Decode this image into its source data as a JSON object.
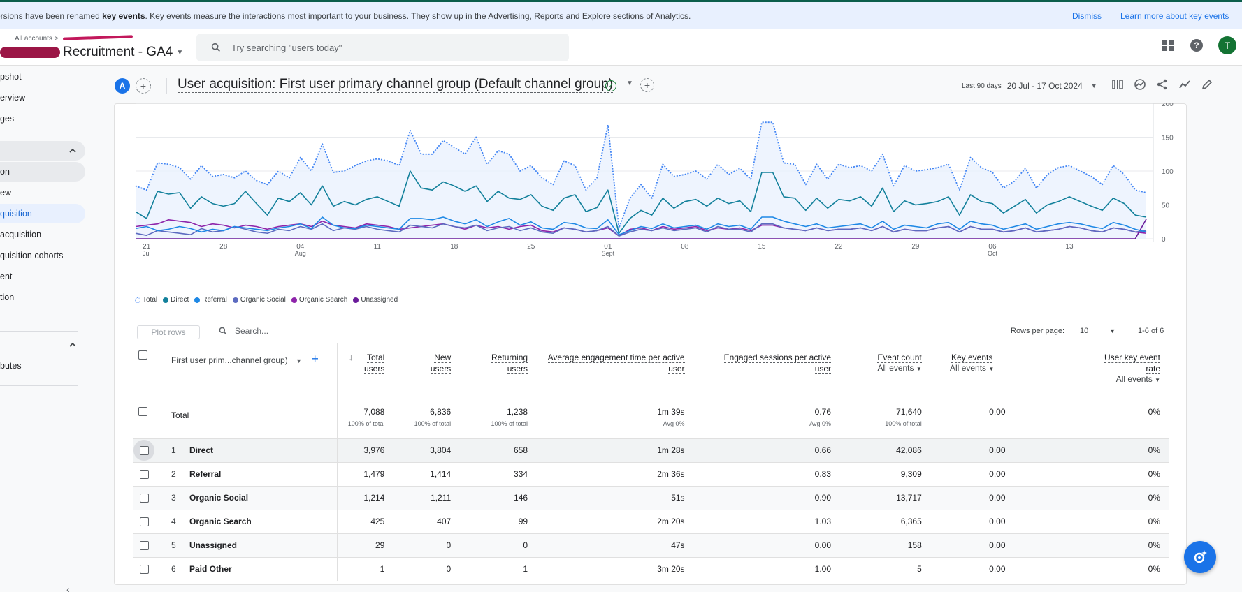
{
  "banner": {
    "message_prefix": "ersions have been renamed ",
    "message_bold": "key events",
    "message_suffix": ". Key events measure the interactions most important to your business. They show up in the Advertising, Reports and Explore sections of Analytics.",
    "dismiss": "Dismiss",
    "learn_more": "Learn more about key events"
  },
  "header": {
    "breadcrumb": "All accounts",
    "property_name": "Recruitment - GA4",
    "search_placeholder": "Try searching \"users today\"",
    "avatar_letter": "T",
    "help_glyph": "?"
  },
  "sidebar": {
    "items": [
      {
        "label": "pshot"
      },
      {
        "label": "erview"
      },
      {
        "label": "ges"
      },
      {
        "label": "on"
      },
      {
        "label": "ew"
      },
      {
        "label": "quisition"
      },
      {
        "label": "acquisition"
      },
      {
        "label": "quisition cohorts"
      },
      {
        "label": "ent"
      },
      {
        "label": "tion"
      },
      {
        "label": "butes"
      }
    ],
    "collapse_glyph": "‹"
  },
  "titlebar": {
    "comparison_chip": "A",
    "title": "User acquisition: First user primary channel group (Default channel group)",
    "date_label": "Last 90 days",
    "date_range": "20 Jul - 17 Oct 2024"
  },
  "chart_data": {
    "type": "line",
    "x_tick_labels": [
      {
        "day": "21",
        "month": "Jul"
      },
      {
        "day": "28",
        "month": ""
      },
      {
        "day": "04",
        "month": "Aug"
      },
      {
        "day": "11",
        "month": ""
      },
      {
        "day": "18",
        "month": ""
      },
      {
        "day": "25",
        "month": ""
      },
      {
        "day": "01",
        "month": "Sept"
      },
      {
        "day": "08",
        "month": ""
      },
      {
        "day": "15",
        "month": ""
      },
      {
        "day": "22",
        "month": ""
      },
      {
        "day": "29",
        "month": ""
      },
      {
        "day": "06",
        "month": "Oct"
      },
      {
        "day": "13",
        "month": ""
      }
    ],
    "y_ticks": [
      0,
      50,
      100,
      150,
      200
    ],
    "ylim": [
      0,
      200
    ],
    "grid": true,
    "legend_position": "bottom-left",
    "series": [
      {
        "name": "Total",
        "color": "#4285f4",
        "style": "dotted",
        "values": [
          78,
          72,
          112,
          110,
          105,
          88,
          108,
          92,
          95,
          90,
          100,
          86,
          80,
          100,
          90,
          120,
          100,
          140,
          98,
          100,
          108,
          115,
          118,
          115,
          108,
          160,
          125,
          125,
          145,
          135,
          125,
          150,
          110,
          130,
          125,
          100,
          108,
          90,
          80,
          115,
          108,
          72,
          90,
          168,
          16,
          60,
          80,
          60,
          110,
          92,
          95,
          100,
          88,
          110,
          95,
          104,
          88,
          172,
          172,
          112,
          110,
          80,
          110,
          88,
          110,
          105,
          108,
          100,
          125,
          78,
          108,
          100,
          102,
          105,
          110,
          72,
          120,
          105,
          98,
          75,
          85,
          104,
          75,
          95,
          105,
          108,
          100,
          92,
          80,
          108,
          95,
          72,
          68
        ]
      },
      {
        "name": "Direct",
        "color": "#12809b",
        "style": "solid",
        "values": [
          40,
          30,
          70,
          66,
          68,
          45,
          62,
          52,
          48,
          52,
          70,
          52,
          35,
          60,
          55,
          68,
          50,
          78,
          48,
          55,
          50,
          58,
          62,
          55,
          48,
          100,
          75,
          72,
          84,
          78,
          70,
          78,
          55,
          70,
          60,
          58,
          65,
          48,
          42,
          60,
          65,
          40,
          46,
          72,
          8,
          30,
          42,
          35,
          60,
          45,
          55,
          58,
          48,
          60,
          52,
          56,
          40,
          98,
          98,
          62,
          60,
          42,
          60,
          45,
          58,
          56,
          62,
          48,
          75,
          40,
          56,
          50,
          52,
          55,
          62,
          35,
          65,
          55,
          52,
          38,
          48,
          58,
          38,
          50,
          55,
          62,
          55,
          48,
          42,
          60,
          52,
          35,
          32
        ]
      },
      {
        "name": "Referral",
        "color": "#1e88e5",
        "style": "solid",
        "values": [
          15,
          18,
          12,
          14,
          18,
          15,
          10,
          14,
          12,
          18,
          16,
          14,
          12,
          16,
          18,
          22,
          15,
          32,
          20,
          16,
          15,
          20,
          18,
          16,
          14,
          30,
          30,
          28,
          32,
          26,
          22,
          28,
          18,
          25,
          30,
          20,
          25,
          16,
          14,
          24,
          22,
          16,
          15,
          28,
          6,
          12,
          18,
          15,
          22,
          16,
          18,
          20,
          14,
          22,
          18,
          20,
          14,
          32,
          32,
          26,
          22,
          18,
          22,
          16,
          18,
          20,
          22,
          16,
          26,
          14,
          20,
          18,
          16,
          22,
          24,
          14,
          26,
          22,
          20,
          14,
          18,
          22,
          14,
          18,
          22,
          24,
          22,
          18,
          15,
          24,
          20,
          14,
          10
        ]
      },
      {
        "name": "Organic Social",
        "color": "#5c6bc0",
        "style": "solid",
        "values": [
          8,
          5,
          12,
          10,
          8,
          6,
          15,
          10,
          12,
          18,
          14,
          10,
          8,
          14,
          12,
          18,
          14,
          22,
          12,
          16,
          14,
          18,
          14,
          12,
          10,
          20,
          18,
          16,
          22,
          18,
          16,
          20,
          12,
          16,
          18,
          12,
          16,
          10,
          8,
          16,
          14,
          10,
          12,
          18,
          4,
          10,
          14,
          12,
          16,
          12,
          14,
          16,
          10,
          18,
          14,
          14,
          10,
          22,
          22,
          16,
          14,
          12,
          16,
          12,
          14,
          14,
          16,
          12,
          18,
          10,
          14,
          12,
          12,
          16,
          18,
          10,
          18,
          14,
          14,
          10,
          12,
          16,
          10,
          12,
          14,
          18,
          16,
          12,
          10,
          16,
          14,
          10,
          12
        ]
      },
      {
        "name": "Organic Search",
        "color": "#8e24aa",
        "style": "solid",
        "values": [
          18,
          20,
          22,
          28,
          26,
          24,
          18,
          22,
          20,
          16,
          20,
          18,
          14,
          18,
          20,
          22,
          18,
          26,
          20,
          18,
          16,
          22,
          20,
          18,
          14,
          16,
          18,
          20,
          22,
          18,
          14,
          20,
          16,
          18,
          14,
          18,
          20,
          12,
          10,
          16,
          14,
          10,
          12,
          16,
          4,
          14,
          16,
          12,
          18,
          14,
          16,
          18,
          12,
          16,
          14,
          16,
          12,
          20,
          20,
          16,
          14,
          12,
          16,
          12,
          14,
          14,
          16,
          12,
          18,
          10,
          14,
          12,
          12,
          16,
          18,
          10,
          18,
          14,
          14,
          10,
          12,
          16,
          10,
          12,
          14,
          18,
          16,
          12,
          10,
          16,
          14,
          10,
          8
        ]
      },
      {
        "name": "Unassigned",
        "color": "#6a1b9a",
        "style": "solid",
        "values": [
          0,
          0,
          0,
          0,
          0,
          0,
          0,
          0,
          0,
          0,
          0,
          0,
          0,
          0,
          0,
          0,
          0,
          0,
          0,
          0,
          0,
          0,
          0,
          0,
          0,
          0,
          0,
          0,
          0,
          0,
          0,
          0,
          0,
          0,
          0,
          0,
          0,
          0,
          0,
          0,
          0,
          0,
          0,
          0,
          0,
          0,
          0,
          0,
          0,
          0,
          0,
          0,
          0,
          0,
          0,
          0,
          0,
          0,
          0,
          0,
          0,
          0,
          0,
          0,
          0,
          0,
          0,
          0,
          0,
          0,
          0,
          0,
          0,
          0,
          0,
          0,
          0,
          0,
          0,
          0,
          0,
          0,
          0,
          0,
          0,
          0,
          0,
          0,
          0,
          0,
          0,
          0,
          29
        ]
      }
    ]
  },
  "table": {
    "plot_rows": "Plot rows",
    "search_placeholder": "Search...",
    "rows_per_page_label": "Rows per page:",
    "rows_per_page": "10",
    "page_count": "1-6 of 6",
    "dimension_header": "First user prim...channel group)",
    "columns": [
      {
        "line1": "Total",
        "line2": "users",
        "sub": ""
      },
      {
        "line1": "New",
        "line2": "users",
        "sub": ""
      },
      {
        "line1": "Returning",
        "line2": "users",
        "sub": ""
      },
      {
        "line1": "Average engagement time per active",
        "line2": "user",
        "sub": ""
      },
      {
        "line1": "Engaged sessions per active",
        "line2": "user",
        "sub": ""
      },
      {
        "line1": "Event count",
        "line2": "",
        "sub": "All events"
      },
      {
        "line1": "Key events",
        "line2": "",
        "sub": "All events"
      },
      {
        "line1": "User key event",
        "line2": "rate",
        "sub": "All events"
      }
    ],
    "total": {
      "label": "Total",
      "values": [
        "7,088",
        "6,836",
        "1,238",
        "1m 39s",
        "0.76",
        "71,640",
        "0.00",
        "0%"
      ],
      "subs": [
        "100% of total",
        "100% of total",
        "100% of total",
        "Avg 0%",
        "Avg 0%",
        "100% of total",
        "",
        ""
      ]
    },
    "rows": [
      {
        "rank": "1",
        "name": "Direct",
        "values": [
          "3,976",
          "3,804",
          "658",
          "1m 28s",
          "0.66",
          "42,086",
          "0.00",
          "0%"
        ]
      },
      {
        "rank": "2",
        "name": "Referral",
        "values": [
          "1,479",
          "1,414",
          "334",
          "2m 36s",
          "0.83",
          "9,309",
          "0.00",
          "0%"
        ]
      },
      {
        "rank": "3",
        "name": "Organic Social",
        "values": [
          "1,214",
          "1,211",
          "146",
          "51s",
          "0.90",
          "13,717",
          "0.00",
          "0%"
        ]
      },
      {
        "rank": "4",
        "name": "Organic Search",
        "values": [
          "425",
          "407",
          "99",
          "2m 20s",
          "1.03",
          "6,365",
          "0.00",
          "0%"
        ]
      },
      {
        "rank": "5",
        "name": "Unassigned",
        "values": [
          "29",
          "0",
          "0",
          "47s",
          "0.00",
          "158",
          "0.00",
          "0%"
        ]
      },
      {
        "rank": "6",
        "name": "Paid Other",
        "values": [
          "1",
          "0",
          "1",
          "3m 20s",
          "1.00",
          "5",
          "0.00",
          "0%"
        ]
      }
    ]
  }
}
